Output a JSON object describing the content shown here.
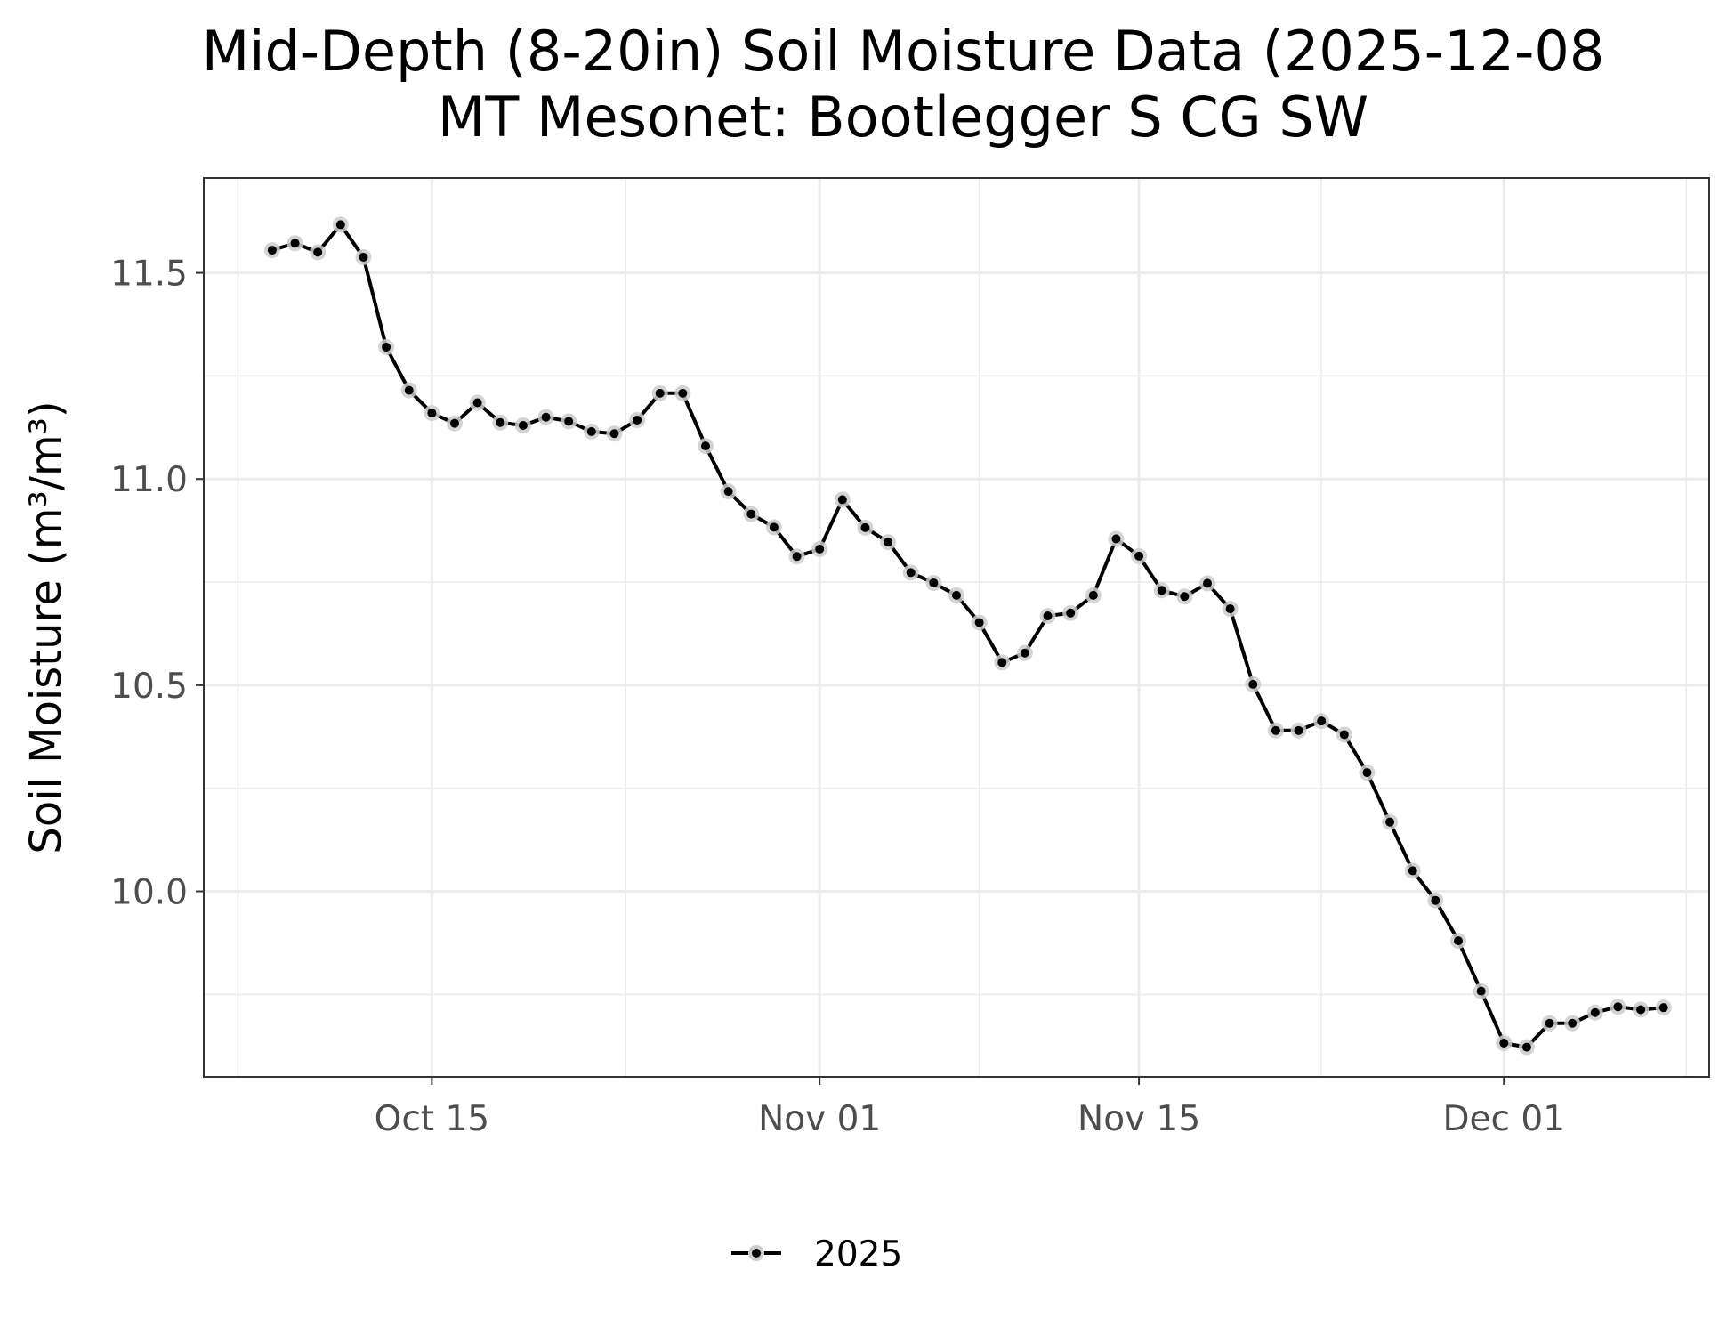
{
  "chart_data": {
    "type": "line",
    "title": "Mid-Depth (8-20in) Soil Moisture Data (2025-12-08",
    "subtitle": "MT Mesonet: Bootlegger S CG SW",
    "xlabel": "",
    "ylabel": "Soil Moisture (m³/m³)",
    "xlim": [
      "2025-10-05",
      "2025-12-10"
    ],
    "ylim": [
      9.55,
      11.73
    ],
    "x_ticks": [
      {
        "date": "2025-10-15",
        "label": "Oct 15"
      },
      {
        "date": "2025-11-01",
        "label": "Nov 01"
      },
      {
        "date": "2025-11-15",
        "label": "Nov 15"
      },
      {
        "date": "2025-12-01",
        "label": "Dec 01"
      }
    ],
    "y_ticks": [
      {
        "value": 10.0,
        "label": "10.0"
      },
      {
        "value": 10.5,
        "label": "10.5"
      },
      {
        "value": 11.0,
        "label": "11.0"
      },
      {
        "value": 11.5,
        "label": "11.5"
      }
    ],
    "grid": true,
    "legend_position": "bottom",
    "colors": {
      "line": "#000000",
      "point_halo": "#cccccc",
      "grid": "#ebebeb",
      "panel_border": "#333333",
      "tick_label": "#4d4d4d"
    },
    "series": [
      {
        "name": "2025",
        "x": [
          "2025-10-08",
          "2025-10-09",
          "2025-10-10",
          "2025-10-11",
          "2025-10-12",
          "2025-10-13",
          "2025-10-14",
          "2025-10-15",
          "2025-10-16",
          "2025-10-17",
          "2025-10-18",
          "2025-10-19",
          "2025-10-20",
          "2025-10-21",
          "2025-10-22",
          "2025-10-23",
          "2025-10-24",
          "2025-10-25",
          "2025-10-26",
          "2025-10-27",
          "2025-10-28",
          "2025-10-29",
          "2025-10-30",
          "2025-10-31",
          "2025-11-01",
          "2025-11-02",
          "2025-11-03",
          "2025-11-04",
          "2025-11-05",
          "2025-11-06",
          "2025-11-07",
          "2025-11-08",
          "2025-11-09",
          "2025-11-10",
          "2025-11-11",
          "2025-11-12",
          "2025-11-13",
          "2025-11-14",
          "2025-11-15",
          "2025-11-16",
          "2025-11-17",
          "2025-11-18",
          "2025-11-19",
          "2025-11-20",
          "2025-11-21",
          "2025-11-22",
          "2025-11-23",
          "2025-11-24",
          "2025-11-25",
          "2025-11-26",
          "2025-11-27",
          "2025-11-28",
          "2025-11-29",
          "2025-11-30",
          "2025-12-01",
          "2025-12-02",
          "2025-12-03",
          "2025-12-04",
          "2025-12-05",
          "2025-12-06",
          "2025-12-07",
          "2025-12-08"
        ],
        "values": [
          11.555,
          11.572,
          11.55,
          11.617,
          11.538,
          11.32,
          11.215,
          11.16,
          11.135,
          11.185,
          11.137,
          11.13,
          11.15,
          11.14,
          11.115,
          11.11,
          11.143,
          11.208,
          11.208,
          11.08,
          10.97,
          10.915,
          10.883,
          10.812,
          10.83,
          10.95,
          10.882,
          10.847,
          10.773,
          10.748,
          10.718,
          10.652,
          10.555,
          10.578,
          10.668,
          10.675,
          10.718,
          10.855,
          10.813,
          10.73,
          10.715,
          10.747,
          10.685,
          10.502,
          10.39,
          10.39,
          10.413,
          10.38,
          10.288,
          10.168,
          10.05,
          9.978,
          9.88,
          9.758,
          9.632,
          9.622,
          9.68,
          9.68,
          9.706,
          9.72,
          9.713,
          9.718
        ]
      }
    ]
  }
}
